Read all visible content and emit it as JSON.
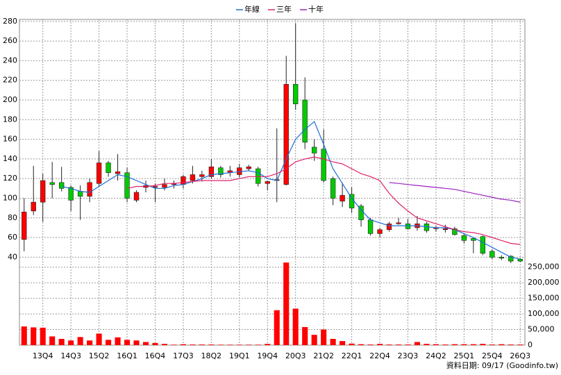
{
  "chart_data": {
    "type": "candlestick",
    "categories": [
      null,
      null,
      "13Q4",
      null,
      null,
      "14Q3",
      null,
      null,
      "15Q2",
      null,
      null,
      "16Q1",
      null,
      null,
      "16Q4",
      null,
      null,
      "17Q3",
      null,
      null,
      "18Q2",
      null,
      null,
      "19Q1",
      null,
      null,
      "19Q4",
      null,
      null,
      "20Q3",
      null,
      null,
      "21Q2",
      null,
      null,
      "22Q1",
      null,
      null,
      "22Q4",
      null,
      null,
      "23Q3",
      null,
      null,
      "24Q2",
      null,
      null,
      "25Q1",
      null,
      null,
      "25Q4",
      null,
      null,
      "26Q3"
    ],
    "open": [
      58,
      87,
      96,
      116,
      116,
      111,
      107,
      102,
      115,
      136,
      125,
      126,
      98,
      111,
      111,
      111,
      114,
      114,
      118,
      122,
      122,
      131,
      126,
      124,
      130,
      130,
      115,
      118,
      114,
      216,
      200,
      152,
      150,
      120,
      97,
      104,
      92,
      78,
      64,
      68,
      74,
      74,
      70,
      74,
      69,
      68,
      69,
      62,
      59,
      61,
      46,
      40,
      41,
      38
    ],
    "high": [
      100,
      133,
      125,
      137,
      132,
      113,
      113,
      120,
      148,
      138,
      145,
      131,
      108,
      118,
      115,
      120,
      118,
      124,
      133,
      128,
      140,
      133,
      133,
      135,
      134,
      132,
      118,
      171,
      245,
      278,
      223,
      160,
      170,
      122,
      116,
      111,
      94,
      80,
      70,
      76,
      80,
      79,
      82,
      76,
      72,
      73,
      71,
      64,
      60,
      62,
      48,
      42,
      42,
      39
    ],
    "low": [
      46,
      83,
      76,
      100,
      107,
      87,
      78,
      96,
      112,
      122,
      118,
      96,
      96,
      106,
      96,
      108,
      110,
      110,
      115,
      117,
      120,
      121,
      122,
      121,
      128,
      112,
      108,
      96,
      113,
      190,
      150,
      138,
      116,
      93,
      91,
      85,
      71,
      62,
      60,
      66,
      73,
      68,
      67,
      65,
      66,
      65,
      62,
      54,
      44,
      42,
      38,
      37,
      34,
      35
    ],
    "close": [
      86,
      96,
      118,
      114,
      110,
      98,
      102,
      116,
      136,
      126,
      127,
      100,
      106,
      113,
      112,
      114,
      115,
      122,
      124,
      124,
      132,
      124,
      128,
      131,
      132,
      115,
      117,
      119,
      216,
      196,
      157,
      146,
      118,
      100,
      103,
      90,
      78,
      64,
      68,
      74,
      75,
      69,
      74,
      67,
      70,
      69,
      63,
      57,
      57,
      44,
      40,
      39,
      36,
      36
    ],
    "up_color": "#ff0000",
    "down_color": "#00cc00",
    "ylim": [
      36,
      282
    ],
    "yticks": [
      40,
      60,
      80,
      100,
      120,
      140,
      160,
      180,
      200,
      220,
      240,
      260,
      280
    ],
    "series": [
      {
        "name": "年線",
        "color": "#1a6fd6",
        "values": [
          null,
          null,
          null,
          null,
          112,
          110,
          107,
          106,
          112,
          118,
          124,
          122,
          118,
          114,
          110,
          110,
          113,
          114,
          117,
          120,
          124,
          125,
          126,
          127,
          128,
          126,
          120,
          118,
          140,
          160,
          170,
          178,
          155,
          130,
          115,
          100,
          88,
          78,
          75,
          72,
          72,
          72,
          72,
          71,
          70,
          70,
          68,
          64,
          60,
          55,
          50,
          45,
          40,
          38
        ]
      },
      {
        "name": "三年",
        "color": "#e0206a",
        "values": [
          null,
          null,
          null,
          null,
          null,
          null,
          null,
          null,
          null,
          null,
          null,
          110,
          112,
          112,
          113,
          115,
          115,
          116,
          117,
          118,
          118,
          118,
          118,
          120,
          122,
          122,
          122,
          125,
          130,
          137,
          140,
          142,
          140,
          137,
          135,
          130,
          125,
          122,
          118,
          105,
          95,
          87,
          80,
          77,
          74,
          71,
          68,
          66,
          65,
          63,
          60,
          57,
          54,
          53
        ]
      },
      {
        "name": "十年",
        "color": "#9b20c0",
        "values": [
          null,
          null,
          null,
          null,
          null,
          null,
          null,
          null,
          null,
          null,
          null,
          null,
          null,
          null,
          null,
          null,
          null,
          null,
          null,
          null,
          null,
          null,
          null,
          null,
          null,
          null,
          null,
          null,
          null,
          null,
          null,
          null,
          null,
          null,
          null,
          null,
          null,
          null,
          null,
          116,
          115,
          114,
          113,
          112,
          111,
          110,
          109,
          107,
          105,
          103,
          101,
          99,
          98,
          96
        ]
      }
    ],
    "volume": {
      "color": "#ff0000",
      "values": [
        60000,
        57000,
        56000,
        28000,
        20000,
        15000,
        26000,
        15000,
        37000,
        17000,
        25000,
        17000,
        15000,
        10000,
        7000,
        4000,
        1500,
        3000,
        2000,
        2000,
        2000,
        1500,
        1500,
        1500,
        1500,
        1500,
        4000,
        112000,
        265000,
        117000,
        58000,
        33000,
        50000,
        20000,
        13000,
        5000,
        3000,
        2000,
        4000,
        2000,
        2000,
        2000,
        10000,
        4000,
        3000,
        2000,
        3000,
        3000,
        3000,
        4000,
        2000,
        3000,
        2000,
        2000
      ],
      "ylim": [
        0,
        265000
      ],
      "yticks": [
        0,
        {
          "value": 50000,
          "label": "50,000"
        },
        {
          "value": 100000,
          "label": "100,000"
        },
        {
          "value": 150000,
          "label": "150,000"
        },
        {
          "value": 200000,
          "label": "200,000"
        },
        {
          "value": 250000,
          "label": "250,000"
        }
      ]
    },
    "grid": true,
    "footer": "資料日期: 09/17  (Goodinfo.tw)"
  }
}
